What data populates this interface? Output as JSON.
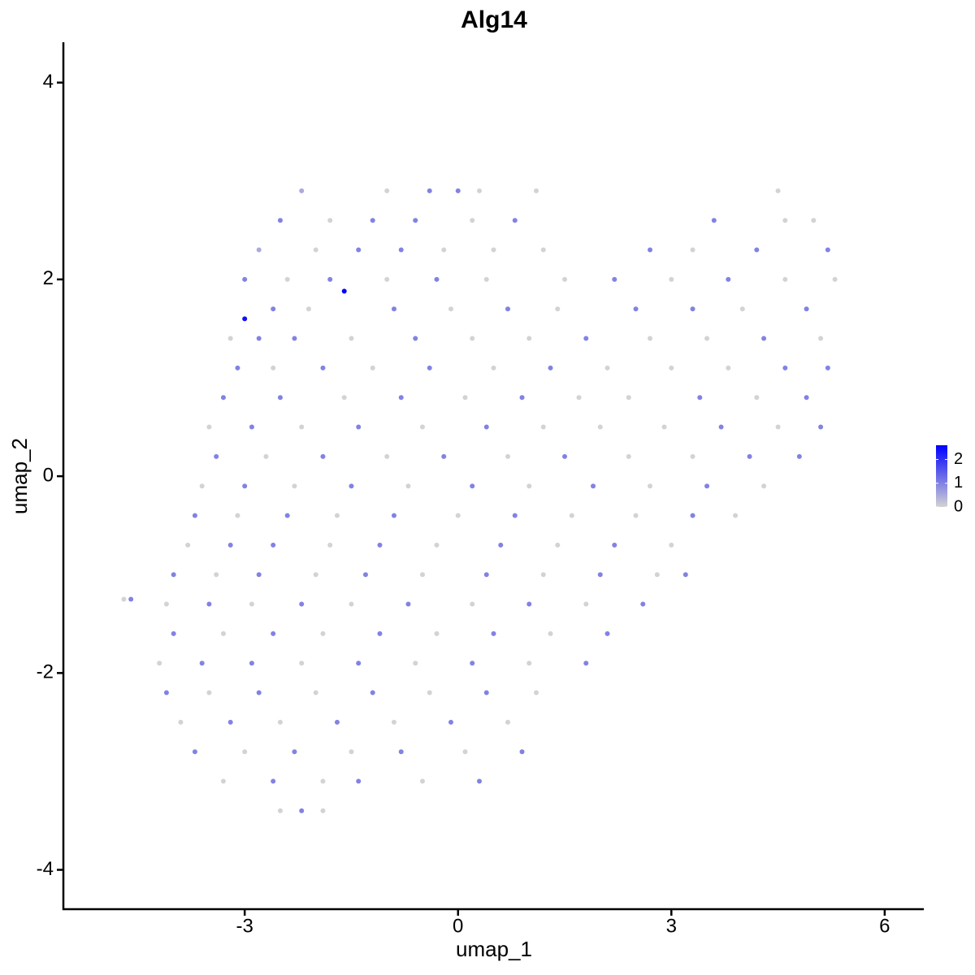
{
  "chart_data": {
    "type": "scatter",
    "title": "Alg14",
    "x_label": "umap_1",
    "y_label": "umap_2",
    "xlim": [
      -5.55,
      6.55
    ],
    "ylim": [
      -4.4,
      4.41
    ],
    "xticks": [
      -3,
      0,
      3,
      6
    ],
    "yticks": [
      -4,
      -2,
      0,
      2,
      4
    ],
    "color_low": "#d3d3d3",
    "color_high": "#0000ff",
    "color_limits": [
      0,
      2.6
    ],
    "color_ticks": [
      0,
      1,
      2
    ],
    "x": [
      -2.2,
      -1.0,
      -0.4,
      0.0,
      0.3,
      1.1,
      4.5,
      -2.5,
      -1.8,
      -1.2,
      -0.6,
      0.2,
      0.8,
      3.6,
      4.6,
      5.0,
      -2.8,
      -2.0,
      -1.4,
      -0.8,
      -0.2,
      0.5,
      1.2,
      2.7,
      3.3,
      4.2,
      5.2,
      -3.0,
      -2.4,
      -1.8,
      -1.0,
      -0.3,
      0.4,
      1.5,
      2.2,
      3.0,
      3.8,
      4.6,
      5.3,
      -1.6,
      -3.0,
      -2.6,
      -2.1,
      -0.9,
      -0.1,
      0.7,
      1.4,
      2.5,
      3.3,
      4.0,
      4.9,
      -3.2,
      -2.8,
      -2.3,
      -1.5,
      -0.6,
      0.2,
      1.0,
      1.8,
      2.7,
      3.5,
      4.3,
      5.1,
      -3.1,
      -2.6,
      -1.9,
      -1.2,
      -0.4,
      0.5,
      1.3,
      2.1,
      3.0,
      3.8,
      4.6,
      5.2,
      -3.3,
      -2.5,
      -1.6,
      -0.8,
      0.1,
      0.9,
      1.7,
      2.4,
      3.4,
      4.2,
      4.9,
      -3.5,
      -2.9,
      -2.2,
      -1.4,
      -0.5,
      0.4,
      1.2,
      2.0,
      2.9,
      3.7,
      4.5,
      5.1,
      -3.4,
      -2.7,
      -1.9,
      -1.0,
      -0.2,
      0.7,
      1.5,
      2.4,
      3.3,
      4.1,
      4.8,
      -3.6,
      -3.0,
      -2.3,
      -1.5,
      -0.7,
      0.2,
      1.0,
      1.9,
      2.7,
      3.5,
      4.3,
      -3.7,
      -3.1,
      -2.4,
      -1.7,
      -0.9,
      0.0,
      0.8,
      1.6,
      2.5,
      3.3,
      3.9,
      -3.8,
      -3.2,
      -2.6,
      -1.8,
      -1.1,
      -0.3,
      0.6,
      1.4,
      2.2,
      3.0,
      -4.0,
      -3.4,
      -2.8,
      -2.0,
      -1.3,
      -0.5,
      0.4,
      1.2,
      2.0,
      2.8,
      3.2,
      -4.7,
      -4.6,
      -4.1,
      -3.5,
      -2.9,
      -2.2,
      -1.5,
      -0.7,
      0.2,
      1.0,
      1.8,
      2.6,
      -4.0,
      -3.3,
      -2.6,
      -1.9,
      -1.1,
      -0.3,
      0.5,
      1.3,
      2.1,
      -4.2,
      -3.6,
      -2.9,
      -2.2,
      -1.4,
      -0.6,
      0.2,
      1.0,
      1.8,
      -4.1,
      -3.5,
      -2.8,
      -2.0,
      -1.2,
      -0.4,
      0.4,
      1.1,
      -3.9,
      -3.2,
      -2.5,
      -1.7,
      -0.9,
      -0.1,
      0.7,
      -3.7,
      -3.0,
      -2.3,
      -1.5,
      -0.8,
      0.1,
      0.9,
      -3.3,
      -2.6,
      -1.9,
      -1.4,
      -0.5,
      0.3,
      -2.5,
      -2.2,
      -1.9
    ],
    "y": [
      2.9,
      2.9,
      2.9,
      2.9,
      2.9,
      2.9,
      2.9,
      2.6,
      2.6,
      2.6,
      2.6,
      2.6,
      2.6,
      2.6,
      2.6,
      2.6,
      2.3,
      2.3,
      2.3,
      2.3,
      2.3,
      2.3,
      2.3,
      2.3,
      2.3,
      2.3,
      2.3,
      2.0,
      2.0,
      2.0,
      2.0,
      2.0,
      2.0,
      2.0,
      2.0,
      2.0,
      2.0,
      2.0,
      2.0,
      1.88,
      1.6,
      1.7,
      1.7,
      1.7,
      1.7,
      1.7,
      1.7,
      1.7,
      1.7,
      1.7,
      1.7,
      1.4,
      1.4,
      1.4,
      1.4,
      1.4,
      1.4,
      1.4,
      1.4,
      1.4,
      1.4,
      1.4,
      1.4,
      1.1,
      1.1,
      1.1,
      1.1,
      1.1,
      1.1,
      1.1,
      1.1,
      1.1,
      1.1,
      1.1,
      1.1,
      0.8,
      0.8,
      0.8,
      0.8,
      0.8,
      0.8,
      0.8,
      0.8,
      0.8,
      0.8,
      0.8,
      0.5,
      0.5,
      0.5,
      0.5,
      0.5,
      0.5,
      0.5,
      0.5,
      0.5,
      0.5,
      0.5,
      0.5,
      0.2,
      0.2,
      0.2,
      0.2,
      0.2,
      0.2,
      0.2,
      0.2,
      0.2,
      0.2,
      0.2,
      -0.1,
      -0.1,
      -0.1,
      -0.1,
      -0.1,
      -0.1,
      -0.1,
      -0.1,
      -0.1,
      -0.1,
      -0.1,
      -0.4,
      -0.4,
      -0.4,
      -0.4,
      -0.4,
      -0.4,
      -0.4,
      -0.4,
      -0.4,
      -0.4,
      -0.4,
      -0.7,
      -0.7,
      -0.7,
      -0.7,
      -0.7,
      -0.7,
      -0.7,
      -0.7,
      -0.7,
      -0.7,
      -1.0,
      -1.0,
      -1.0,
      -1.0,
      -1.0,
      -1.0,
      -1.0,
      -1.0,
      -1.0,
      -1.0,
      -1.0,
      -1.25,
      -1.25,
      -1.3,
      -1.3,
      -1.3,
      -1.3,
      -1.3,
      -1.3,
      -1.3,
      -1.3,
      -1.3,
      -1.3,
      -1.6,
      -1.6,
      -1.6,
      -1.6,
      -1.6,
      -1.6,
      -1.6,
      -1.6,
      -1.6,
      -1.9,
      -1.9,
      -1.9,
      -1.9,
      -1.9,
      -1.9,
      -1.9,
      -1.9,
      -1.9,
      -2.2,
      -2.2,
      -2.2,
      -2.2,
      -2.2,
      -2.2,
      -2.2,
      -2.2,
      -2.5,
      -2.5,
      -2.5,
      -2.5,
      -2.5,
      -2.5,
      -2.5,
      -2.8,
      -2.8,
      -2.8,
      -2.8,
      -2.8,
      -2.8,
      -2.8,
      -3.1,
      -3.1,
      -3.1,
      -3.1,
      -3.1,
      -3.1,
      -3.4,
      -3.4,
      -3.4
    ],
    "expression": [
      0.5,
      0,
      1,
      1,
      0,
      0,
      0,
      1,
      0,
      1,
      1,
      0,
      1,
      1,
      0,
      0,
      0.5,
      0,
      1,
      1,
      0,
      0,
      0,
      1,
      0,
      1,
      1,
      1,
      0,
      1,
      0,
      1,
      0,
      0,
      1,
      0,
      1,
      0,
      0,
      2.6,
      2.4,
      1,
      0,
      1,
      0,
      1,
      0,
      1,
      1,
      0,
      1,
      0,
      1,
      1,
      0,
      1,
      0,
      0,
      1,
      0,
      0,
      1,
      0,
      1,
      0,
      1,
      0,
      1,
      0,
      1,
      0,
      0,
      0,
      1,
      1,
      1,
      1,
      0,
      1,
      0,
      1,
      0,
      0,
      1,
      0,
      1,
      0,
      1,
      0,
      1,
      0,
      1,
      0,
      0,
      0,
      1,
      0,
      1,
      1,
      0,
      1,
      0,
      1,
      0,
      1,
      0,
      0,
      1,
      1,
      0,
      1,
      0,
      1,
      0,
      1,
      0,
      1,
      0,
      1,
      0,
      1,
      0,
      1,
      0,
      1,
      0,
      1,
      0,
      0,
      1,
      0,
      0,
      1,
      1,
      0,
      1,
      0,
      1,
      0,
      1,
      0,
      1,
      0,
      1,
      0,
      1,
      0,
      1,
      0,
      1,
      0,
      1,
      0,
      1,
      0,
      1,
      0,
      1,
      0,
      1,
      0,
      1,
      0,
      1,
      1,
      0,
      1,
      0,
      1,
      0,
      1,
      0,
      1,
      0,
      1,
      1,
      0,
      1,
      0,
      1,
      0,
      1,
      1,
      0,
      1,
      0,
      1,
      0,
      1,
      0,
      0,
      1,
      0,
      1,
      0,
      1,
      0,
      1,
      0,
      1,
      0,
      1,
      0,
      1,
      0,
      1,
      0,
      1,
      0,
      1,
      0,
      1,
      0
    ]
  }
}
